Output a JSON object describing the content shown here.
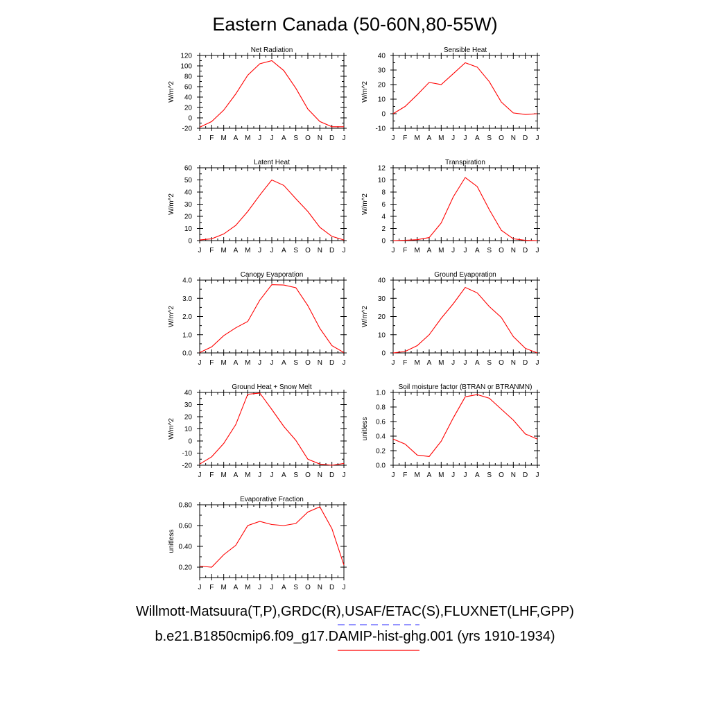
{
  "title": "Eastern Canada (50-60N,80-55W)",
  "colors": {
    "model_line": "#ff0000",
    "obs_line": "#5555ff",
    "axis": "#000000"
  },
  "legend": {
    "obs_label": "Willmott-Matsuura(T,P),GRDC(R),USAF/ETAC(S),FLUXNET(LHF,GPP)",
    "model_label": "b.e21.B1850cmip6.f09_g17.DAMIP-hist-ghg.001 (yrs 1910-1934)"
  },
  "chart_data": [
    {
      "type": "line",
      "title": "Net Radiation",
      "ylabel": "W/m^2",
      "categories": [
        "J",
        "F",
        "M",
        "A",
        "M",
        "J",
        "J",
        "A",
        "S",
        "O",
        "N",
        "D",
        "J"
      ],
      "ylim": [
        -20,
        120
      ],
      "yticks": [
        -20,
        0,
        20,
        40,
        60,
        80,
        100,
        120
      ],
      "ytick_labels": [
        "-20",
        "0",
        "20",
        "40",
        "60",
        "80",
        "100",
        "120"
      ],
      "series": [
        {
          "values": [
            -18,
            -7,
            15,
            46,
            82,
            104,
            110,
            91,
            57,
            17,
            -7,
            -17,
            -17
          ]
        }
      ]
    },
    {
      "type": "line",
      "title": "Sensible Heat",
      "ylabel": "W/m^2",
      "categories": [
        "J",
        "F",
        "M",
        "A",
        "M",
        "J",
        "J",
        "A",
        "S",
        "O",
        "N",
        "D",
        "J"
      ],
      "ylim": [
        -10,
        40
      ],
      "yticks": [
        -10,
        0,
        10,
        20,
        30,
        40
      ],
      "ytick_labels": [
        "-10",
        "0",
        "10",
        "20",
        "30",
        "40"
      ],
      "series": [
        {
          "values": [
            0,
            5,
            13,
            21.5,
            20,
            27.5,
            35,
            32,
            22,
            8,
            0.5,
            -0.5,
            0
          ]
        }
      ]
    },
    {
      "type": "line",
      "title": "Latent Heat",
      "ylabel": "W/m^2",
      "categories": [
        "J",
        "F",
        "M",
        "A",
        "M",
        "J",
        "J",
        "A",
        "S",
        "O",
        "N",
        "D",
        "J"
      ],
      "ylim": [
        0,
        60
      ],
      "yticks": [
        0,
        10,
        20,
        30,
        40,
        50,
        60
      ],
      "ytick_labels": [
        "0",
        "10",
        "20",
        "30",
        "40",
        "50",
        "60"
      ],
      "series": [
        {
          "values": [
            0.5,
            1.5,
            5.5,
            12.5,
            24,
            37.5,
            50,
            45.5,
            34.5,
            24,
            11,
            3.5,
            0.5
          ]
        }
      ]
    },
    {
      "type": "line",
      "title": "Transpiration",
      "ylabel": "W/m^2",
      "categories": [
        "J",
        "F",
        "M",
        "A",
        "M",
        "J",
        "J",
        "A",
        "S",
        "O",
        "N",
        "D",
        "J"
      ],
      "ylim": [
        0,
        12
      ],
      "yticks": [
        0,
        2,
        4,
        6,
        8,
        10,
        12
      ],
      "ytick_labels": [
        "0",
        "2",
        "4",
        "6",
        "8",
        "10",
        "12"
      ],
      "series": [
        {
          "values": [
            0,
            0.05,
            0.15,
            0.5,
            2.9,
            7.2,
            10.4,
            8.9,
            5.1,
            1.7,
            0.3,
            0.05,
            0
          ]
        }
      ]
    },
    {
      "type": "line",
      "title": "Canopy Evaporation",
      "ylabel": "W/m^2",
      "categories": [
        "J",
        "F",
        "M",
        "A",
        "M",
        "J",
        "J",
        "A",
        "S",
        "O",
        "N",
        "D",
        "J"
      ],
      "ylim": [
        0,
        4
      ],
      "yticks": [
        0,
        1,
        2,
        3,
        4
      ],
      "ytick_labels": [
        "0.0",
        "1.0",
        "2.0",
        "3.0",
        "4.0"
      ],
      "series": [
        {
          "values": [
            0.02,
            0.33,
            0.95,
            1.38,
            1.73,
            2.9,
            3.75,
            3.73,
            3.58,
            2.6,
            1.35,
            0.4,
            0.02
          ]
        }
      ]
    },
    {
      "type": "line",
      "title": "Ground Evaporation",
      "ylabel": "W/m^2",
      "categories": [
        "J",
        "F",
        "M",
        "A",
        "M",
        "J",
        "J",
        "A",
        "S",
        "O",
        "N",
        "D",
        "J"
      ],
      "ylim": [
        0,
        40
      ],
      "yticks": [
        0,
        10,
        20,
        30,
        40
      ],
      "ytick_labels": [
        "0",
        "10",
        "20",
        "30",
        "40"
      ],
      "series": [
        {
          "values": [
            0,
            0.8,
            4,
            10,
            19,
            27,
            36,
            33,
            25.5,
            19.5,
            9,
            2.5,
            0
          ]
        }
      ]
    },
    {
      "type": "line",
      "title": "Ground Heat + Snow Melt",
      "ylabel": "W/m^2",
      "categories": [
        "J",
        "F",
        "M",
        "A",
        "M",
        "J",
        "J",
        "A",
        "S",
        "O",
        "N",
        "D",
        "J"
      ],
      "ylim": [
        -20,
        40
      ],
      "yticks": [
        -20,
        -10,
        0,
        10,
        20,
        30,
        40
      ],
      "ytick_labels": [
        "-20",
        "-10",
        "0",
        "10",
        "20",
        "30",
        "40"
      ],
      "series": [
        {
          "values": [
            -19,
            -13,
            -2,
            13.5,
            38.5,
            39.5,
            26,
            12,
            0.5,
            -15,
            -19,
            -20,
            -18.5
          ]
        }
      ]
    },
    {
      "type": "line",
      "title": "Soil moisture factor (BTRAN or BTRANMN)",
      "ylabel": "unitless",
      "categories": [
        "J",
        "F",
        "M",
        "A",
        "M",
        "J",
        "J",
        "A",
        "S",
        "O",
        "N",
        "D",
        "J"
      ],
      "ylim": [
        0,
        1
      ],
      "yticks": [
        0,
        0.2,
        0.4,
        0.6,
        0.8,
        1.0
      ],
      "ytick_labels": [
        "0.0",
        "0.2",
        "0.4",
        "0.6",
        "0.8",
        "1.0"
      ],
      "series": [
        {
          "values": [
            0.36,
            0.29,
            0.14,
            0.12,
            0.33,
            0.65,
            0.94,
            0.97,
            0.92,
            0.77,
            0.62,
            0.43,
            0.36
          ]
        }
      ]
    },
    {
      "type": "line",
      "title": "Evaporative Fraction",
      "ylabel": "unitless",
      "categories": [
        "J",
        "F",
        "M",
        "A",
        "M",
        "J",
        "J",
        "A",
        "S",
        "O",
        "N",
        "D",
        "J"
      ],
      "ylim": [
        0.1,
        0.8
      ],
      "yticks": [
        0.2,
        0.4,
        0.6,
        0.8
      ],
      "ytick_labels": [
        "0.20",
        "0.40",
        "0.60",
        "0.80"
      ],
      "series": [
        {
          "values": [
            0.21,
            0.2,
            0.32,
            0.41,
            0.6,
            0.64,
            0.61,
            0.6,
            0.62,
            0.73,
            0.78,
            0.57,
            0.22
          ]
        }
      ]
    }
  ]
}
